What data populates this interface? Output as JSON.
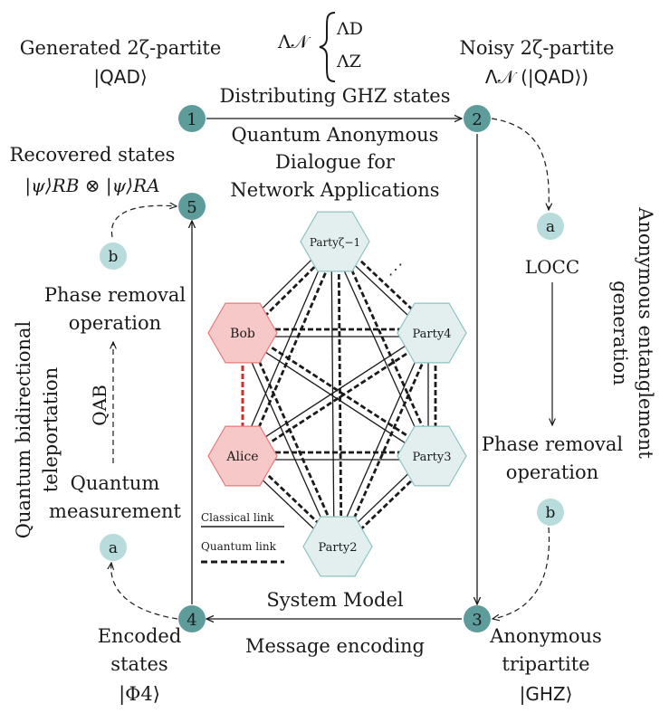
{
  "colors": {
    "node_dark": "#5e9c9c",
    "node_light": "#b7dcdb",
    "hex_fill": "#e3efef",
    "hex_stroke": "#8fc2c2",
    "hex_red_fill": "#f7c8c8",
    "hex_red_stroke": "#e77a7a",
    "quantum_red": "#d62b2b"
  },
  "noise_channel": {
    "main": "Λ𝒩",
    "option_d": "ΛD",
    "option_z": "ΛZ"
  },
  "corner_labels": {
    "top_left": [
      "Generated 2ζ-partite",
      "|QAD⟩"
    ],
    "top_right": [
      "Noisy 2ζ-partite",
      "Λ𝒩 (|QAD⟩)"
    ],
    "recovered": [
      "Recovered states",
      "|ψ⟩RB ⊗ |ψ⟩RA"
    ],
    "bottom_left": [
      "Encoded",
      "states",
      "|Φ4⟩"
    ],
    "bottom_right": [
      "Anonymous",
      "tripartite",
      "|GHZ⟩"
    ]
  },
  "edge_labels": {
    "top": "Distributing GHZ states",
    "bottom": "Message encoding",
    "system_model": "System Model"
  },
  "center_title": [
    "Quantum Anonymous",
    "Dialogue for",
    "Network Applications"
  ],
  "steps": [
    "1",
    "2",
    "3",
    "4",
    "5"
  ],
  "substeps": {
    "right_a": "a",
    "right_b": "b",
    "left_a": "a",
    "left_b": "b"
  },
  "right_process": {
    "vertical_label": [
      "Anonymous entanglement",
      "generation"
    ],
    "locc": "LOCC",
    "phase_removal": [
      "Phase removal",
      "operation"
    ]
  },
  "left_process": {
    "vertical_label": [
      "Quantum bidirectional",
      "teleportation"
    ],
    "qab": "QAB",
    "phase_removal": [
      "Phase removal",
      "operation"
    ],
    "measurement": [
      "Quantum",
      "measurement"
    ]
  },
  "parties": {
    "bob": "Bob",
    "alice": "Alice",
    "party_zeta": "Partyζ−1",
    "party4": "Party4",
    "party3": "Party3",
    "party2": "Party2",
    "ellipsis": "⋰"
  },
  "legend": {
    "classical": "Classical link",
    "quantum": "Quantum link"
  }
}
